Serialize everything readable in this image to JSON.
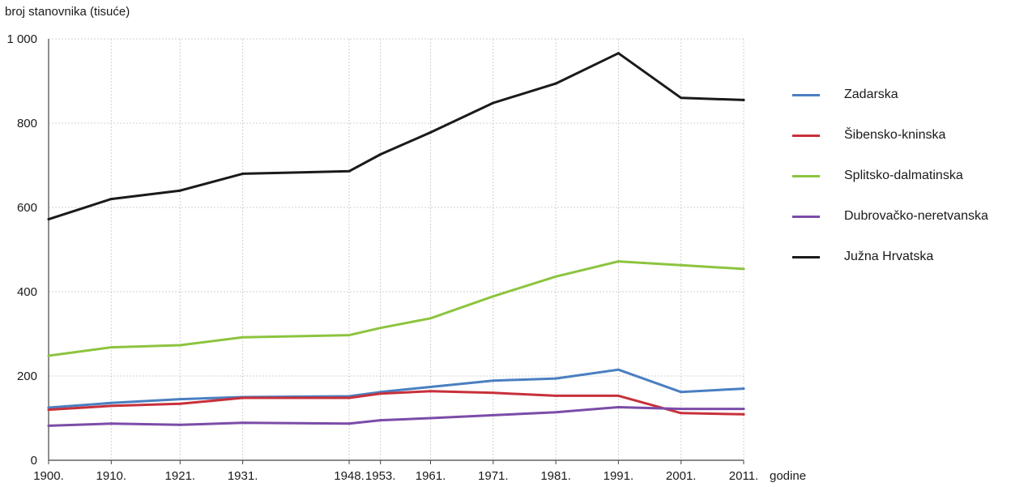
{
  "chart_data": {
    "type": "line",
    "ylabel": "broj stanovnika (tisuće)",
    "xlabel": "godine",
    "ylim": [
      0,
      1000
    ],
    "yticks": [
      0,
      200,
      400,
      600,
      800,
      1000
    ],
    "ytick_labels": [
      "0",
      "200",
      "400",
      "600",
      "800",
      "1 000"
    ],
    "x": [
      1900,
      1910,
      1921,
      1931,
      1948,
      1953,
      1961,
      1971,
      1981,
      1991,
      2001,
      2011
    ],
    "x_labels": [
      "1900.",
      "1910.",
      "1921.",
      "1931.",
      "1948.",
      "1953.",
      "1961.",
      "1971.",
      "1981.",
      "1991.",
      "2001.",
      "2011."
    ],
    "grid": true,
    "legend_position": "right",
    "series": [
      {
        "name": "Zadarska",
        "color": "#4a7fc1",
        "values": [
          125,
          136,
          145,
          150,
          152,
          162,
          174,
          189,
          194,
          215,
          162,
          170
        ]
      },
      {
        "name": "Šibensko-kninska",
        "color": "#c8303a",
        "values": [
          120,
          129,
          134,
          148,
          148,
          158,
          164,
          160,
          153,
          153,
          112,
          109
        ]
      },
      {
        "name": "Splitsko-dalmatinska",
        "color": "#8cc43f",
        "values": [
          248,
          268,
          273,
          292,
          297,
          314,
          337,
          389,
          436,
          472,
          463,
          454
        ]
      },
      {
        "name": "Dubrovačko-neretvanska",
        "color": "#7b4ca8",
        "values": [
          82,
          87,
          84,
          89,
          87,
          95,
          100,
          107,
          114,
          126,
          122,
          122
        ]
      },
      {
        "name": "Južna Hrvatska",
        "color": "#1a1a1a",
        "values": [
          572,
          620,
          640,
          680,
          686,
          726,
          778,
          848,
          894,
          966,
          860,
          855
        ]
      }
    ]
  }
}
